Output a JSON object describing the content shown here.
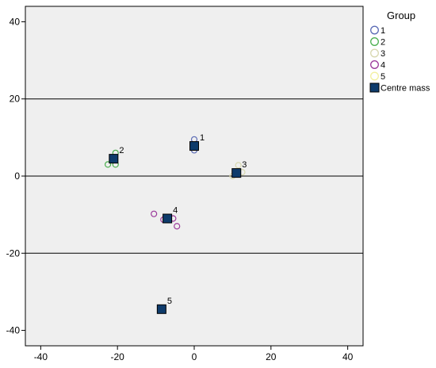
{
  "chart_data": {
    "type": "scatter",
    "title": "",
    "xlabel": "",
    "ylabel": "",
    "xlim": [
      -44,
      44
    ],
    "ylim": [
      -44,
      44
    ],
    "xticks": [
      -40,
      -20,
      0,
      20,
      40
    ],
    "yticks": [
      -40,
      -20,
      0,
      20,
      40
    ],
    "x_tick_labels": [
      "-40",
      "-20",
      "0",
      "20",
      "40"
    ],
    "y_tick_labels": [
      "-40",
      "-20",
      "0",
      "20",
      "40"
    ],
    "horizontal_reference_lines": [
      20,
      0,
      -20
    ],
    "grid": false,
    "legend_position": "right",
    "legend": {
      "title": "Group",
      "entries": [
        {
          "label": "1",
          "marker": "circle",
          "color": "#5b6bb5"
        },
        {
          "label": "2",
          "marker": "circle",
          "color": "#4caf50"
        },
        {
          "label": "3",
          "marker": "circle",
          "color": "#d8d8b0"
        },
        {
          "label": "4",
          "marker": "circle",
          "color": "#9b3a9b"
        },
        {
          "label": "5",
          "marker": "circle",
          "color": "#f2f0a0"
        },
        {
          "label": "Centre mass",
          "marker": "square",
          "color": "#0e3b6b"
        }
      ]
    },
    "series": [
      {
        "name": "1",
        "color": "#5b6bb5",
        "points": [
          [
            0,
            9.5
          ],
          [
            0,
            6.7
          ]
        ]
      },
      {
        "name": "2",
        "color": "#4caf50",
        "points": [
          [
            -20.5,
            6
          ],
          [
            -22.5,
            3
          ],
          [
            -20.5,
            3
          ]
        ]
      },
      {
        "name": "3",
        "color": "#d8d8b0",
        "points": [
          [
            11.5,
            2.8
          ],
          [
            12.5,
            1
          ],
          [
            10,
            0
          ]
        ]
      },
      {
        "name": "4",
        "color": "#9b3a9b",
        "points": [
          [
            -10.5,
            -9.8
          ],
          [
            -8,
            -11.3
          ],
          [
            -5.5,
            -11
          ],
          [
            -4.5,
            -13
          ]
        ]
      },
      {
        "name": "5",
        "color": "#f2f0a0",
        "points": [
          [
            -8.5,
            -34.5
          ]
        ]
      },
      {
        "name": "Centre mass",
        "color": "#0e3b6b",
        "points": [
          [
            0,
            7.8
          ],
          [
            -21,
            4.5
          ],
          [
            11,
            0.8
          ],
          [
            -7,
            -11
          ],
          [
            -8.5,
            -34.5
          ]
        ]
      }
    ],
    "centre_labels": [
      {
        "label": "1",
        "x": 0,
        "y": 7.8
      },
      {
        "label": "2",
        "x": -21,
        "y": 4.5
      },
      {
        "label": "3",
        "x": 11,
        "y": 0.8
      },
      {
        "label": "4",
        "x": -7,
        "y": -11
      },
      {
        "label": "5",
        "x": -8.5,
        "y": -34.5
      }
    ]
  }
}
